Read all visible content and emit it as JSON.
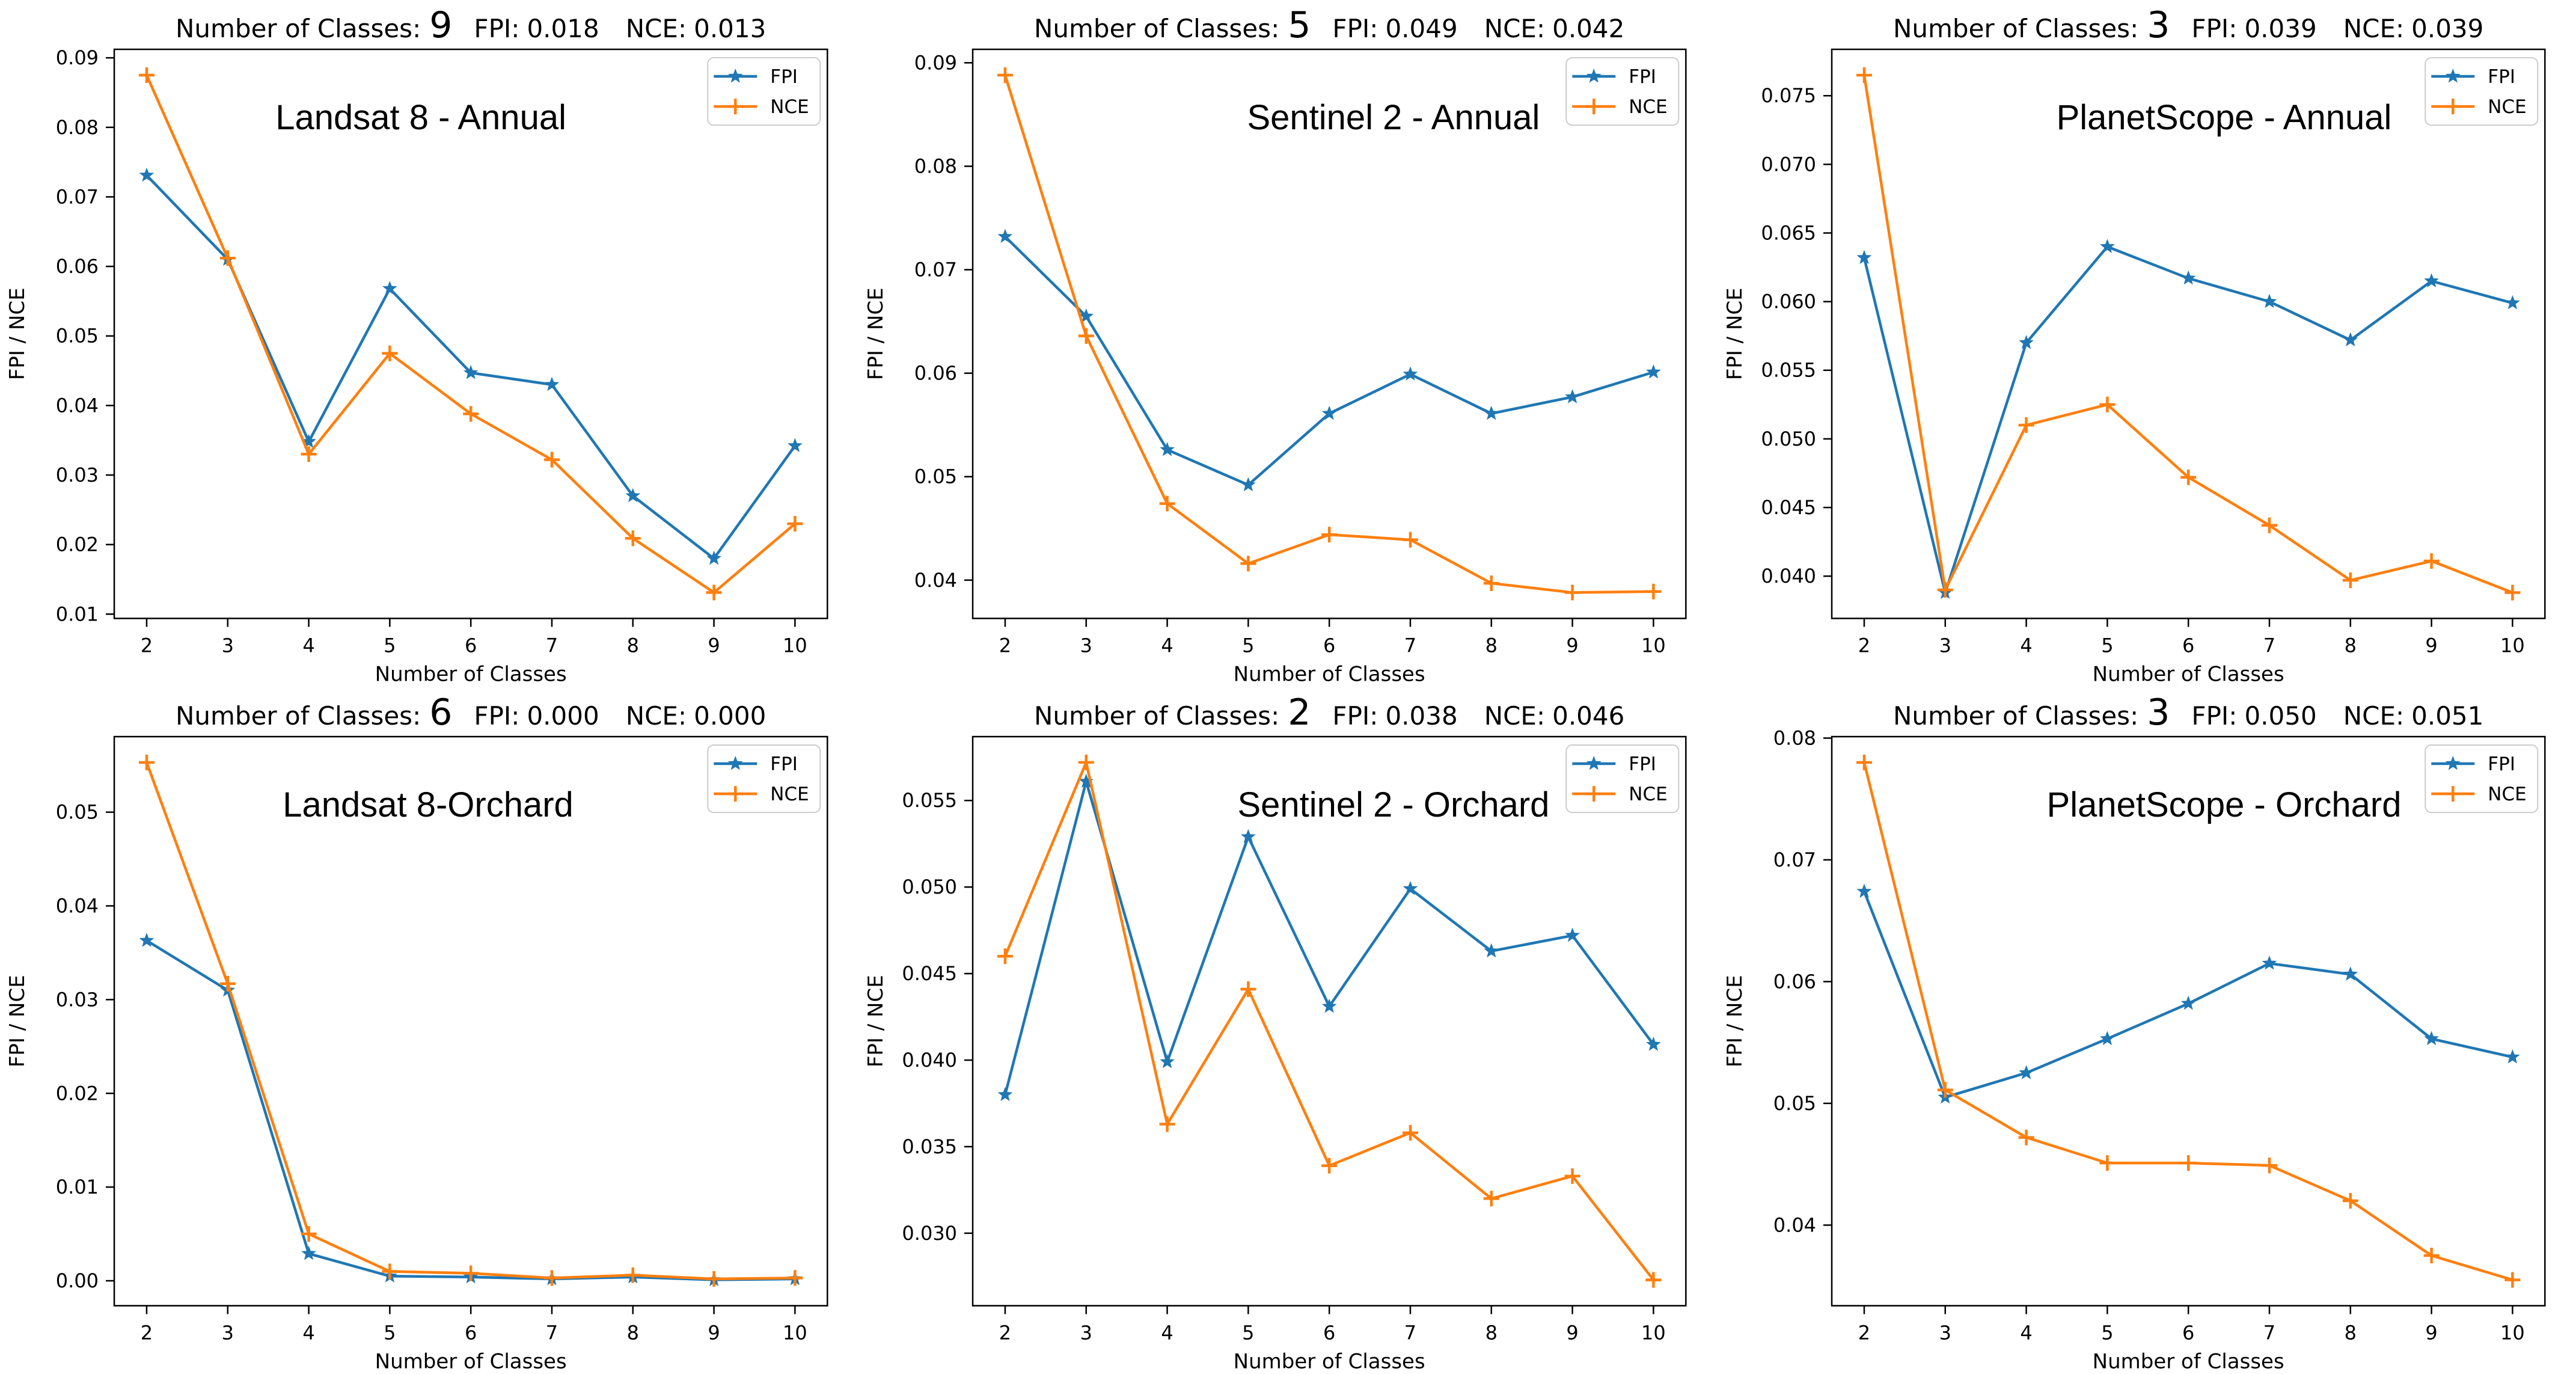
{
  "figure": {
    "rows": 2,
    "cols": 3,
    "background": "#ffffff",
    "series_colors": {
      "fpi": "#1f77b4",
      "nce": "#ff7f0e"
    },
    "axis_color": "#000000"
  },
  "chart_data": [
    {
      "type": "line",
      "panel": "top-left",
      "header": {
        "classes_label": "Number of Classes:",
        "classes_value": "9",
        "fpi_label": "FPI:",
        "fpi_value": "0.018",
        "nce_label": "NCE:",
        "nce_value": "0.013"
      },
      "title": "Landsat 8 - Annual",
      "xlabel": "Number of Classes",
      "ylabel": "FPI / NCE",
      "x": [
        2,
        3,
        4,
        5,
        6,
        7,
        8,
        9,
        10
      ],
      "xlim": [
        1.6,
        10.4
      ],
      "ylim": [
        0.00938,
        0.09122
      ],
      "yticks": [
        0.01,
        0.02,
        0.03,
        0.04,
        0.05,
        0.06,
        0.07,
        0.08,
        0.09
      ],
      "ytick_labels": [
        "0.01",
        "0.02",
        "0.03",
        "0.04",
        "0.05",
        "0.06",
        "0.07",
        "0.08",
        "0.09"
      ],
      "legend_position": "upper-right",
      "series": [
        {
          "name": "FPI",
          "color": "#1f77b4",
          "marker": "star",
          "values": [
            0.0731,
            0.061,
            0.0348,
            0.0568,
            0.0447,
            0.043,
            0.027,
            0.018,
            0.0342
          ]
        },
        {
          "name": "NCE",
          "color": "#ff7f0e",
          "marker": "plus",
          "values": [
            0.0875,
            0.0612,
            0.033,
            0.0475,
            0.0388,
            0.0322,
            0.0209,
            0.0131,
            0.023
          ]
        }
      ]
    },
    {
      "type": "line",
      "panel": "top-middle",
      "header": {
        "classes_label": "Number of Classes:",
        "classes_value": "5",
        "fpi_label": "FPI:",
        "fpi_value": "0.049",
        "nce_label": "NCE:",
        "nce_value": "0.042"
      },
      "title": "Sentinel 2 - Annual",
      "xlabel": "Number of Classes",
      "ylabel": "FPI / NCE",
      "x": [
        2,
        3,
        4,
        5,
        6,
        7,
        8,
        9,
        10
      ],
      "xlim": [
        1.6,
        10.4
      ],
      "ylim": [
        0.0363,
        0.0913
      ],
      "yticks": [
        0.04,
        0.05,
        0.06,
        0.07,
        0.08,
        0.09
      ],
      "ytick_labels": [
        "0.04",
        "0.05",
        "0.06",
        "0.07",
        "0.08",
        "0.09"
      ],
      "legend_position": "upper-right",
      "series": [
        {
          "name": "FPI",
          "color": "#1f77b4",
          "marker": "star",
          "values": [
            0.0732,
            0.0655,
            0.0526,
            0.0492,
            0.0561,
            0.0599,
            0.0561,
            0.0577,
            0.0601
          ]
        },
        {
          "name": "NCE",
          "color": "#ff7f0e",
          "marker": "plus",
          "values": [
            0.0888,
            0.0636,
            0.0474,
            0.0416,
            0.0444,
            0.0439,
            0.0397,
            0.0388,
            0.0389
          ]
        }
      ]
    },
    {
      "type": "line",
      "panel": "top-right",
      "header": {
        "classes_label": "Number of Classes:",
        "classes_value": "3",
        "fpi_label": "FPI:",
        "fpi_value": "0.039",
        "nce_label": "NCE:",
        "nce_value": "0.039"
      },
      "title": "PlanetScope - Annual",
      "xlabel": "Number of Classes",
      "ylabel": "FPI / NCE",
      "x": [
        2,
        3,
        4,
        5,
        6,
        7,
        8,
        9,
        10
      ],
      "xlim": [
        1.6,
        10.4
      ],
      "ylim": [
        0.03692,
        0.07838
      ],
      "yticks": [
        0.04,
        0.045,
        0.05,
        0.055,
        0.06,
        0.065,
        0.07,
        0.075
      ],
      "ytick_labels": [
        "0.040",
        "0.045",
        "0.050",
        "0.055",
        "0.060",
        "0.065",
        "0.070",
        "0.075"
      ],
      "legend_position": "upper-right",
      "series": [
        {
          "name": "FPI",
          "color": "#1f77b4",
          "marker": "star",
          "values": [
            0.0632,
            0.0388,
            0.057,
            0.064,
            0.0617,
            0.06,
            0.0572,
            0.0615,
            0.0599
          ]
        },
        {
          "name": "NCE",
          "color": "#ff7f0e",
          "marker": "plus",
          "values": [
            0.0765,
            0.039,
            0.051,
            0.0525,
            0.0472,
            0.0437,
            0.0397,
            0.0411,
            0.0388
          ]
        }
      ]
    },
    {
      "type": "line",
      "panel": "bottom-left",
      "header": {
        "classes_label": "Number of Classes:",
        "classes_value": "6",
        "fpi_label": "FPI:",
        "fpi_value": "0.000",
        "nce_label": "NCE:",
        "nce_value": "0.000"
      },
      "title": "Landsat 8-Orchard",
      "xlabel": "Number of Classes",
      "ylabel": "FPI / NCE",
      "x": [
        2,
        3,
        4,
        5,
        6,
        7,
        8,
        9,
        10
      ],
      "xlim": [
        1.6,
        10.4
      ],
      "ylim": [
        -0.00266,
        0.05806
      ],
      "yticks": [
        0.0,
        0.01,
        0.02,
        0.03,
        0.04,
        0.05
      ],
      "ytick_labels": [
        "0.00",
        "0.01",
        "0.02",
        "0.03",
        "0.04",
        "0.05"
      ],
      "legend_position": "upper-right",
      "series": [
        {
          "name": "FPI",
          "color": "#1f77b4",
          "marker": "star",
          "values": [
            0.0363,
            0.031,
            0.0029,
            0.0005,
            0.0004,
            0.0002,
            0.0004,
            0.0001,
            0.0002
          ]
        },
        {
          "name": "NCE",
          "color": "#ff7f0e",
          "marker": "plus",
          "values": [
            0.0553,
            0.0317,
            0.005,
            0.001,
            0.0008,
            0.0003,
            0.0006,
            0.0002,
            0.0003
          ]
        }
      ]
    },
    {
      "type": "line",
      "panel": "bottom-middle",
      "header": {
        "classes_label": "Number of Classes:",
        "classes_value": "2",
        "fpi_label": "FPI:",
        "fpi_value": "0.038",
        "nce_label": "NCE:",
        "nce_value": "0.046"
      },
      "title": "Sentinel 2 - Orchard",
      "xlabel": "Number of Classes",
      "ylabel": "FPI / NCE",
      "x": [
        2,
        3,
        4,
        5,
        6,
        7,
        8,
        9,
        10
      ],
      "xlim": [
        1.6,
        10.4
      ],
      "ylim": [
        0.02581,
        0.05869
      ],
      "yticks": [
        0.03,
        0.035,
        0.04,
        0.045,
        0.05,
        0.055
      ],
      "ytick_labels": [
        "0.030",
        "0.035",
        "0.040",
        "0.045",
        "0.050",
        "0.055"
      ],
      "legend_position": "upper-right",
      "series": [
        {
          "name": "FPI",
          "color": "#1f77b4",
          "marker": "star",
          "values": [
            0.038,
            0.0561,
            0.0399,
            0.0529,
            0.0431,
            0.0499,
            0.0463,
            0.0472,
            0.0409
          ]
        },
        {
          "name": "NCE",
          "color": "#ff7f0e",
          "marker": "plus",
          "values": [
            0.046,
            0.0572,
            0.0363,
            0.0441,
            0.0339,
            0.0358,
            0.032,
            0.0333,
            0.0273
          ]
        }
      ]
    },
    {
      "type": "line",
      "panel": "bottom-right",
      "header": {
        "classes_label": "Number of Classes:",
        "classes_value": "3",
        "fpi_label": "FPI:",
        "fpi_value": "0.050",
        "nce_label": "NCE:",
        "nce_value": "0.051"
      },
      "title": "PlanetScope - Orchard",
      "xlabel": "Number of Classes",
      "ylabel": "FPI / NCE",
      "x": [
        2,
        3,
        4,
        5,
        6,
        7,
        8,
        9,
        10
      ],
      "xlim": [
        1.6,
        10.4
      ],
      "ylim": [
        0.03338,
        0.08012
      ],
      "yticks": [
        0.04,
        0.05,
        0.06,
        0.07,
        0.08
      ],
      "ytick_labels": [
        "0.04",
        "0.05",
        "0.06",
        "0.07",
        "0.08"
      ],
      "legend_position": "upper-right",
      "series": [
        {
          "name": "FPI",
          "color": "#1f77b4",
          "marker": "star",
          "values": [
            0.0674,
            0.0505,
            0.0525,
            0.0553,
            0.0582,
            0.0615,
            0.0606,
            0.0553,
            0.0538
          ]
        },
        {
          "name": "NCE",
          "color": "#ff7f0e",
          "marker": "plus",
          "values": [
            0.078,
            0.0511,
            0.0472,
            0.0451,
            0.0451,
            0.0449,
            0.042,
            0.0375,
            0.0355
          ]
        }
      ]
    }
  ]
}
